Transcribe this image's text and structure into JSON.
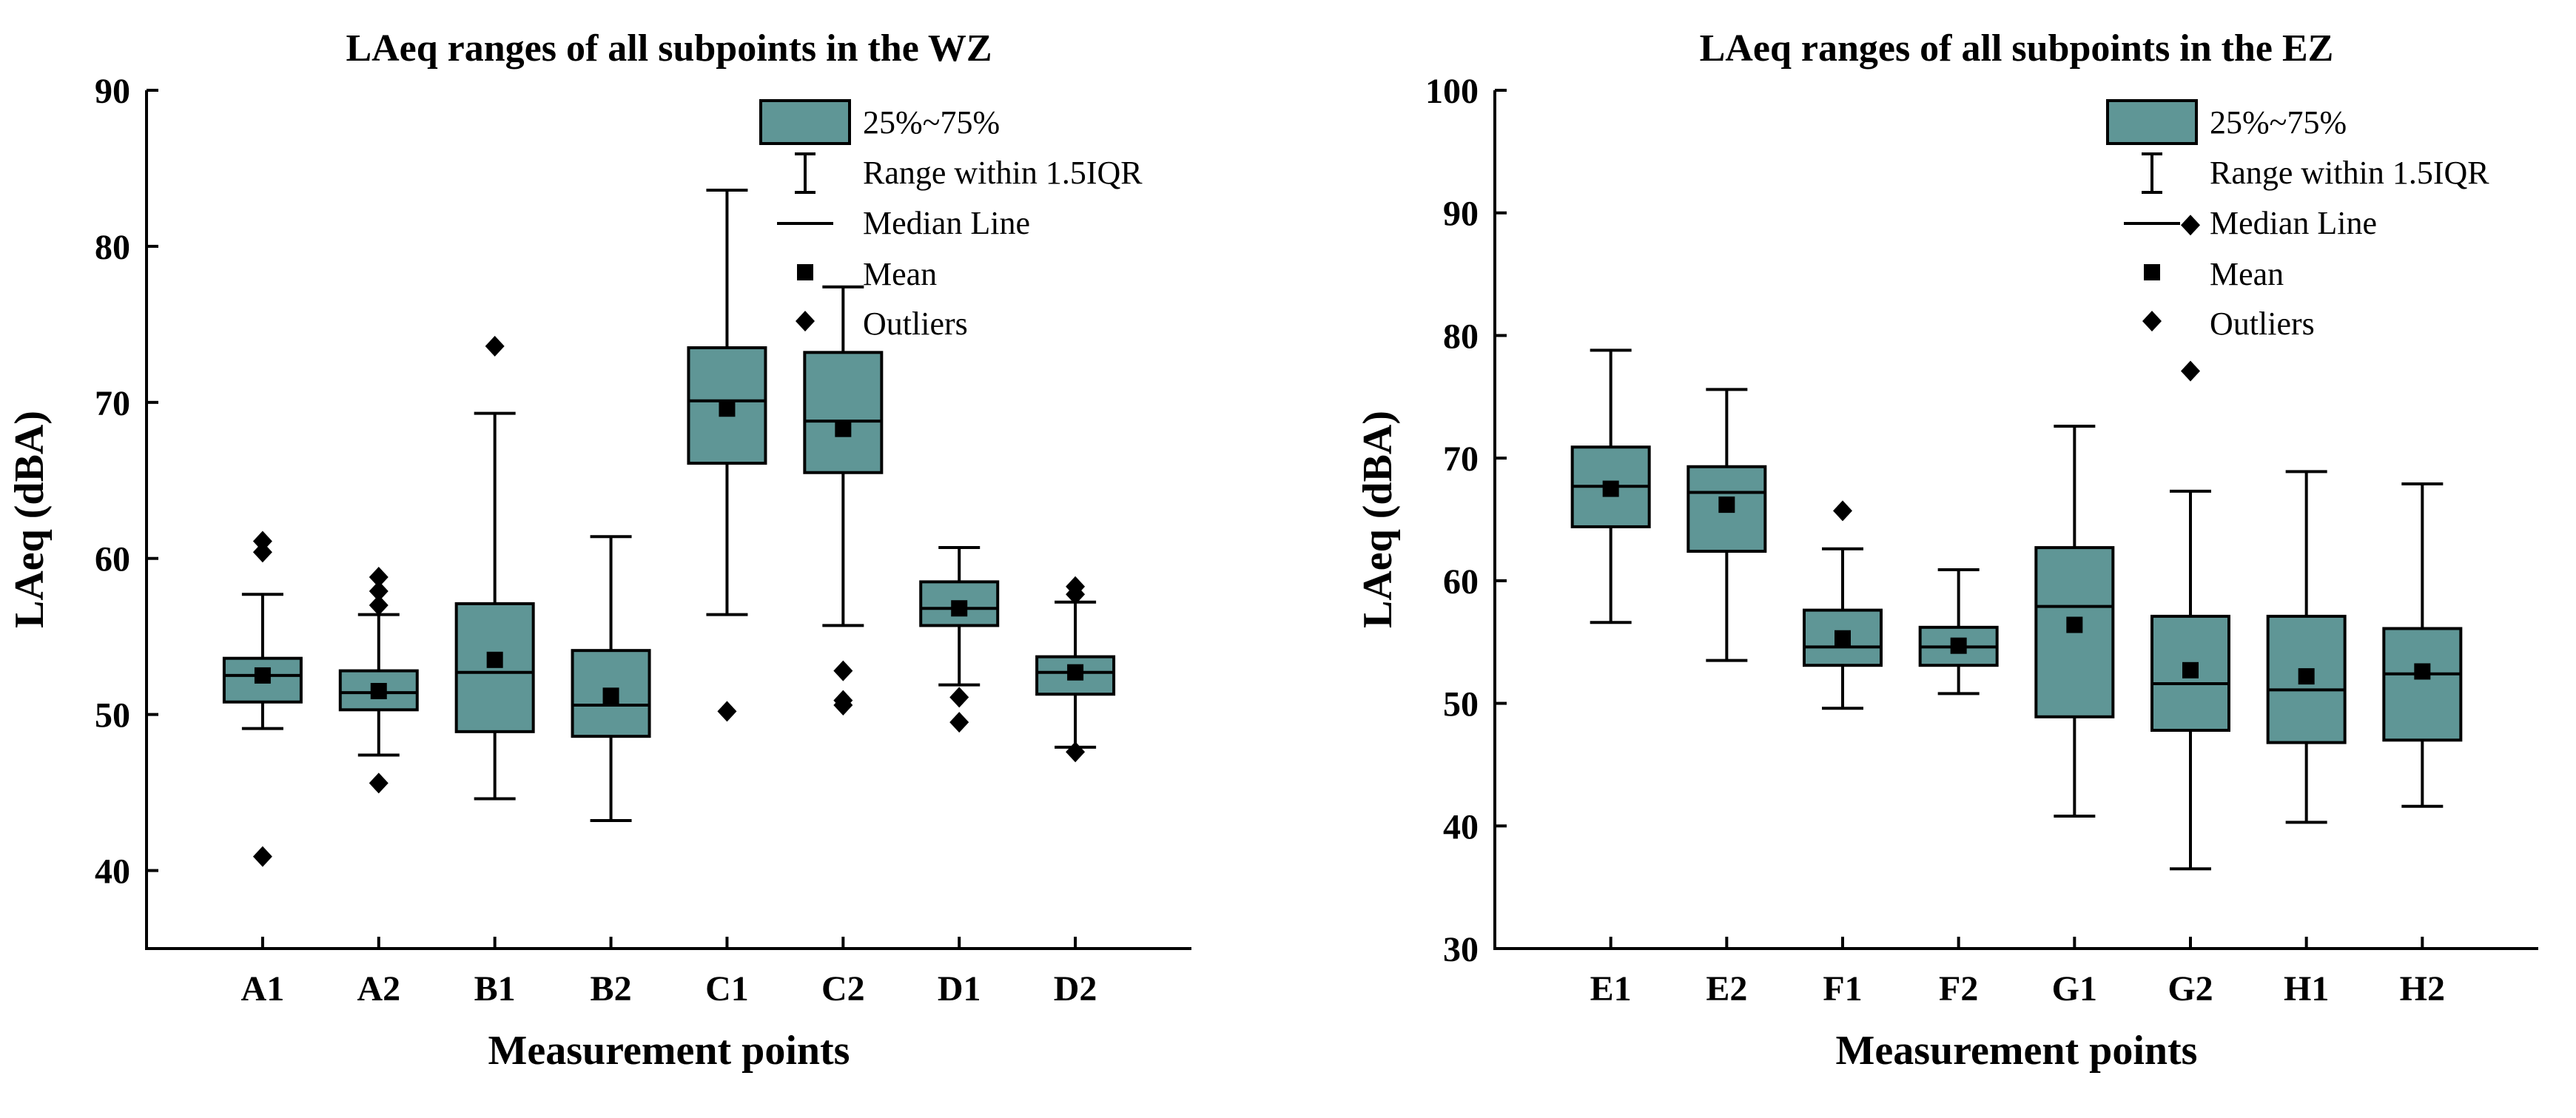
{
  "colors": {
    "box_fill": "#5f9696",
    "stroke": "#000000",
    "background": "#ffffff"
  },
  "legend": {
    "iqr": "25%~75%",
    "whisker": "Range within 1.5IQR",
    "median": "Median Line",
    "mean": "Mean",
    "outliers": "Outliers"
  },
  "chart_data": [
    {
      "type": "box",
      "title": "LAeq ranges of all subpoints in the WZ",
      "xlabel": "Measurement points",
      "ylabel": "LAeq (dBA)",
      "ylim": [
        35,
        90
      ],
      "yticks": [
        40,
        50,
        60,
        70,
        80,
        90
      ],
      "legend_position": "top-right",
      "categories": [
        "A1",
        "A2",
        "B1",
        "B2",
        "C1",
        "C2",
        "D1",
        "D2"
      ],
      "boxes": [
        {
          "min": 49.1,
          "q1": 50.8,
          "median": 52.5,
          "q3": 53.6,
          "max": 57.7,
          "mean": 52.5,
          "outliers": [
            40.9,
            60.4,
            61.1
          ]
        },
        {
          "min": 47.4,
          "q1": 50.3,
          "median": 51.4,
          "q3": 52.8,
          "max": 56.4,
          "mean": 51.5,
          "outliers": [
            45.6,
            57.0,
            57.9,
            58.8
          ]
        },
        {
          "min": 44.6,
          "q1": 48.9,
          "median": 52.7,
          "q3": 57.1,
          "max": 69.3,
          "mean": 53.5,
          "outliers": [
            73.6
          ]
        },
        {
          "min": 43.2,
          "q1": 48.6,
          "median": 50.6,
          "q3": 54.1,
          "max": 61.4,
          "mean": 51.2,
          "outliers": []
        },
        {
          "min": 56.4,
          "q1": 66.1,
          "median": 70.1,
          "q3": 73.5,
          "max": 83.6,
          "mean": 69.6,
          "outliers": [
            50.2
          ]
        },
        {
          "min": 55.7,
          "q1": 65.5,
          "median": 68.8,
          "q3": 73.2,
          "max": 77.4,
          "mean": 68.3,
          "outliers": [
            50.6,
            50.9,
            52.8
          ]
        },
        {
          "min": 51.9,
          "q1": 55.7,
          "median": 56.8,
          "q3": 58.5,
          "max": 60.7,
          "mean": 56.8,
          "outliers": [
            49.5,
            51.1
          ]
        },
        {
          "min": 47.9,
          "q1": 51.3,
          "median": 52.7,
          "q3": 53.7,
          "max": 57.2,
          "mean": 52.7,
          "outliers": [
            47.6,
            57.7,
            58.2
          ]
        }
      ]
    },
    {
      "type": "box",
      "title": "LAeq ranges of all subpoints in the EZ",
      "xlabel": "Measurement points",
      "ylabel": "LAeq (dBA)",
      "ylim": [
        30,
        100
      ],
      "yticks": [
        30,
        40,
        50,
        60,
        70,
        80,
        90,
        100
      ],
      "legend_position": "top-right",
      "categories": [
        "E1",
        "E2",
        "F1",
        "F2",
        "G1",
        "G2",
        "H1",
        "H2"
      ],
      "boxes": [
        {
          "min": 56.6,
          "q1": 64.4,
          "median": 67.7,
          "q3": 70.9,
          "max": 78.8,
          "mean": 67.5,
          "outliers": []
        },
        {
          "min": 53.5,
          "q1": 62.4,
          "median": 67.2,
          "q3": 69.3,
          "max": 75.6,
          "mean": 66.2,
          "outliers": []
        },
        {
          "min": 49.6,
          "q1": 53.1,
          "median": 54.6,
          "q3": 57.6,
          "max": 62.6,
          "mean": 55.3,
          "outliers": [
            65.7
          ]
        },
        {
          "min": 50.8,
          "q1": 53.1,
          "median": 54.6,
          "q3": 56.2,
          "max": 60.9,
          "mean": 54.7,
          "outliers": []
        },
        {
          "min": 40.8,
          "q1": 48.9,
          "median": 57.9,
          "q3": 62.7,
          "max": 72.6,
          "mean": 56.4,
          "outliers": []
        },
        {
          "min": 36.5,
          "q1": 47.8,
          "median": 51.6,
          "q3": 57.1,
          "max": 67.3,
          "mean": 52.7,
          "outliers": [
            77.1,
            89.0
          ]
        },
        {
          "min": 40.3,
          "q1": 46.8,
          "median": 51.1,
          "q3": 57.1,
          "max": 68.9,
          "mean": 52.2,
          "outliers": []
        },
        {
          "min": 41.6,
          "q1": 47.0,
          "median": 52.4,
          "q3": 56.1,
          "max": 67.9,
          "mean": 52.6,
          "outliers": []
        }
      ]
    }
  ]
}
